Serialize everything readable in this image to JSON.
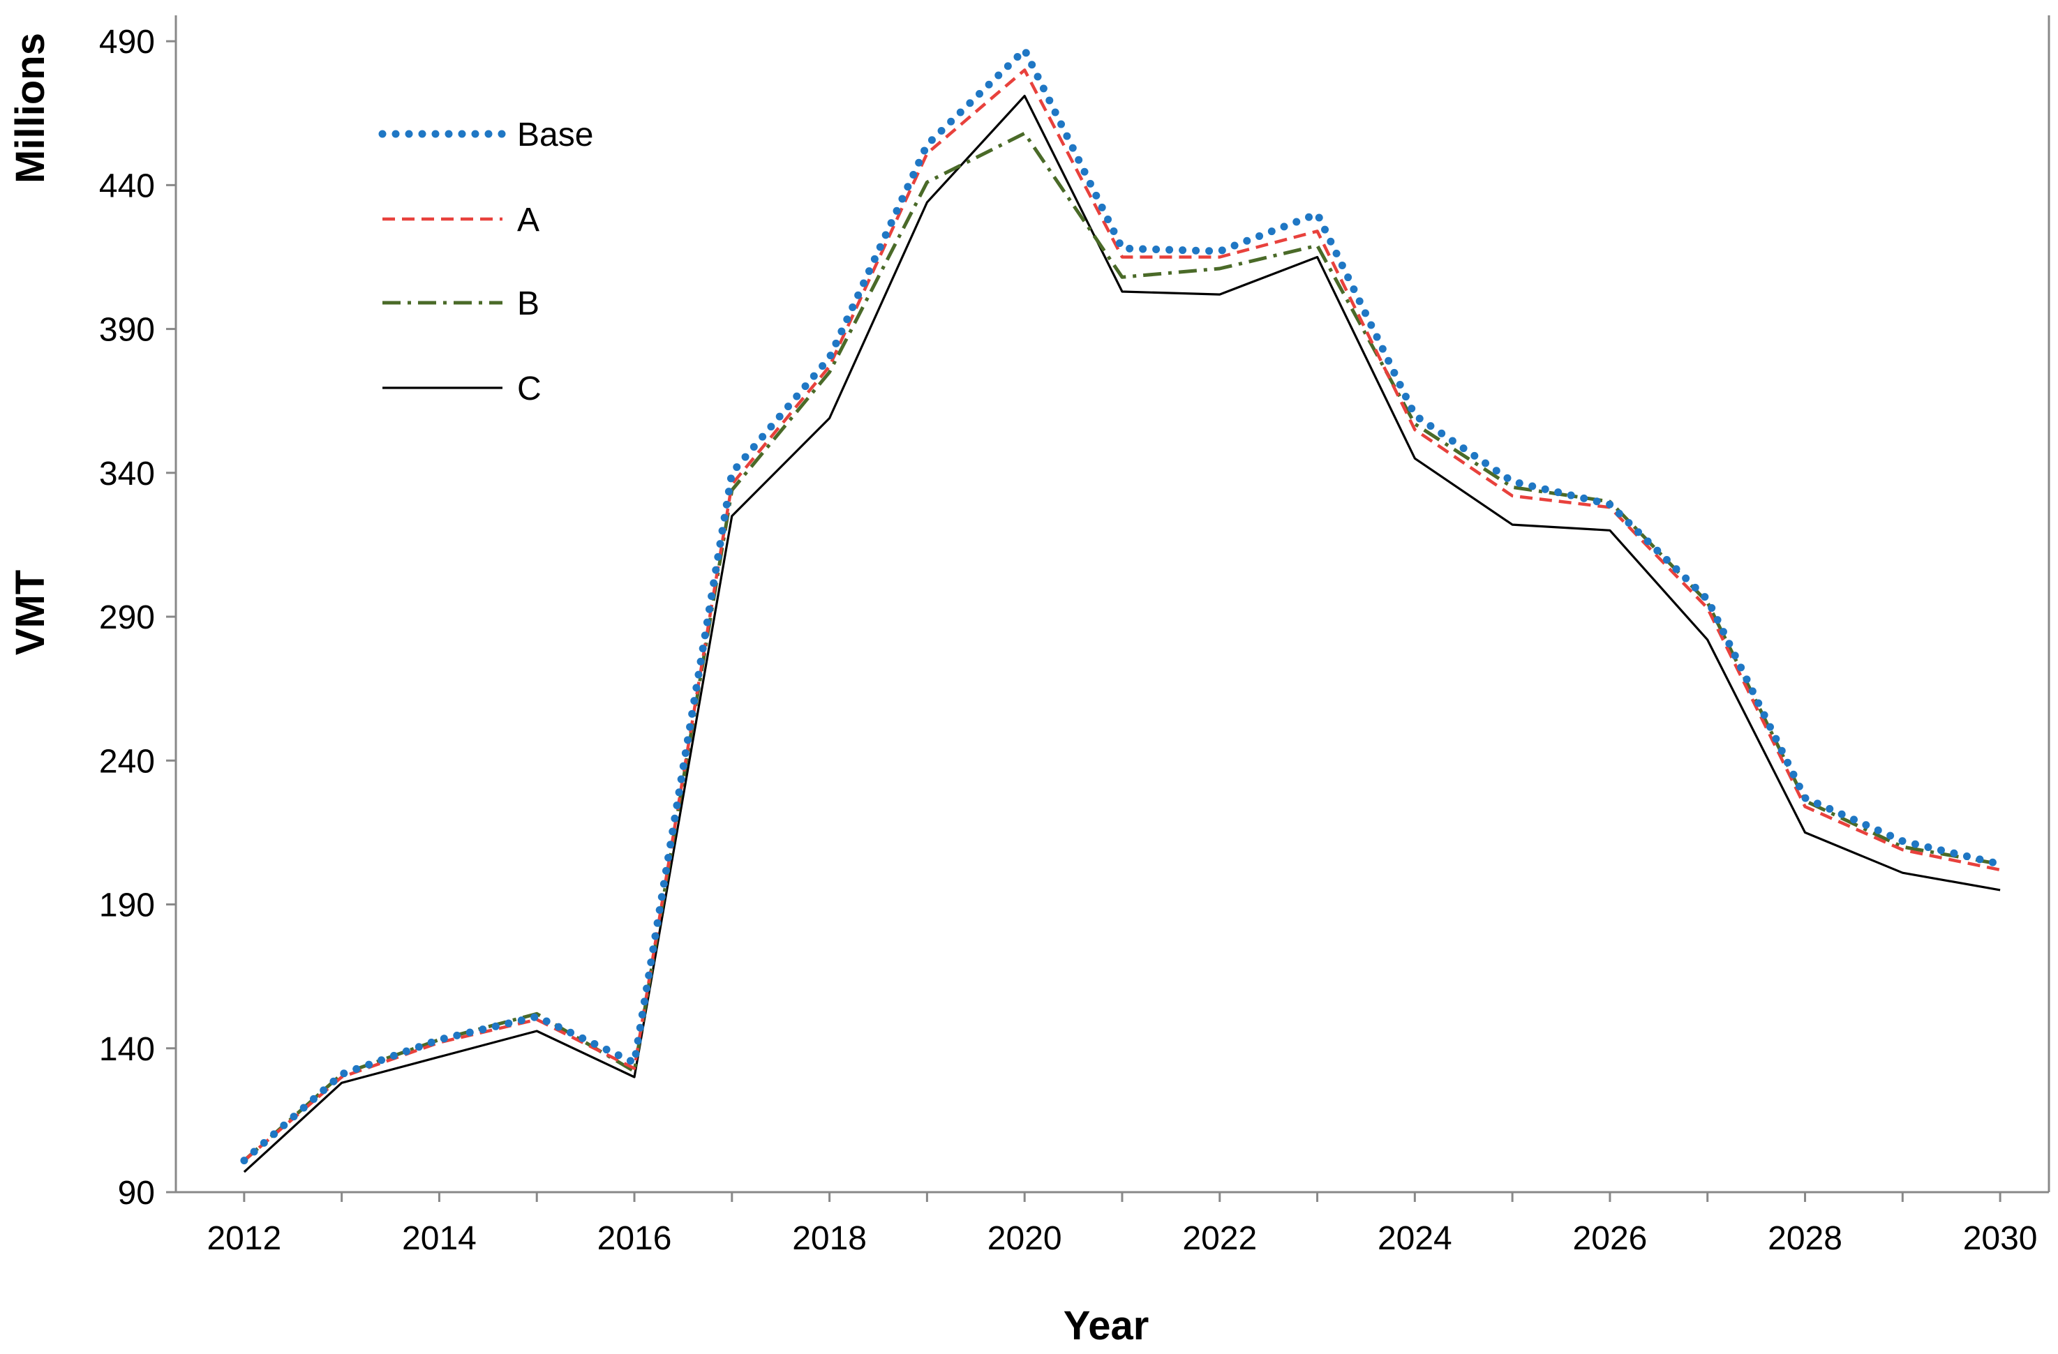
{
  "chart_data": {
    "type": "line",
    "title": "",
    "xlabel": "Year",
    "ylabel": "VMT",
    "yunit_label": "Millions",
    "x": [
      2012,
      2013,
      2014,
      2015,
      2016,
      2017,
      2018,
      2019,
      2020,
      2021,
      2022,
      2023,
      2024,
      2025,
      2026,
      2027,
      2028,
      2029,
      2030
    ],
    "xticks": [
      "2012",
      "2014",
      "2016",
      "2018",
      "2020",
      "2022",
      "2024",
      "2026",
      "2028",
      "2030"
    ],
    "yticks": [
      "90",
      "140",
      "190",
      "240",
      "290",
      "340",
      "390",
      "440",
      "490"
    ],
    "xlim": [
      2011.3,
      2030.5
    ],
    "ylim": [
      90,
      499
    ],
    "grid": false,
    "legend_position": "top-left",
    "series": [
      {
        "name": "Base",
        "color": "#1f77c4",
        "style": "dotted",
        "values": [
          101,
          131,
          143,
          151,
          135,
          340,
          380,
          454,
          487,
          418,
          417,
          430,
          360,
          337,
          329,
          296,
          227,
          212,
          204
        ]
      },
      {
        "name": "A",
        "color": "#e8413c",
        "style": "dashed",
        "values": [
          101,
          130,
          142,
          150,
          133,
          336,
          377,
          451,
          480,
          415,
          415,
          424,
          355,
          332,
          328,
          293,
          224,
          209,
          202
        ]
      },
      {
        "name": "B",
        "color": "#4a6a28",
        "style": "dashdot",
        "values": [
          101,
          131,
          143,
          152,
          132,
          334,
          375,
          441,
          458,
          408,
          411,
          419,
          357,
          335,
          330,
          295,
          226,
          210,
          204
        ]
      },
      {
        "name": "C",
        "color": "#000000",
        "style": "solid",
        "values": [
          97,
          128,
          137,
          146,
          130,
          325,
          359,
          434,
          471,
          403,
          402,
          415,
          345,
          322,
          320,
          282,
          215,
          201,
          195
        ]
      }
    ]
  }
}
